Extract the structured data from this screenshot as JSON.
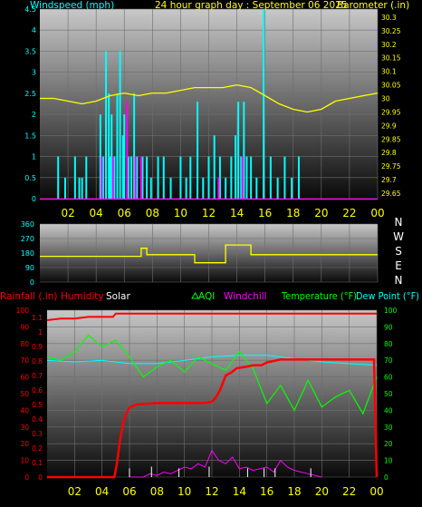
{
  "colors": {
    "background": "#000000",
    "plot_top": "#c8c8c8",
    "plot_bottom": "#0a0a0a",
    "windspeed": "#00ffff",
    "gust": "#ff00ff",
    "barometer": "#ffff00",
    "direction": "#ffff00",
    "rainfall": "#ff0000",
    "humidity": "#ff0000",
    "solar": "#ffffff",
    "aqi": "#00ff00",
    "windchill": "#ff00ff",
    "temperature": "#00ff00",
    "dewpoint": "#00ffff",
    "hour_axis": "#ffff00"
  },
  "chart_data": [
    {
      "type": "bar",
      "title": "24 hour graph day : September 06 2025",
      "left_axis_label": "Windspeed (mph)",
      "right_axis_label": "Barometer (.in)",
      "x_ticks": [
        "02",
        "04",
        "06",
        "08",
        "10",
        "12",
        "14",
        "16",
        "18",
        "20",
        "22",
        "00"
      ],
      "xlim": [
        0,
        24
      ],
      "ylim_left": [
        0,
        4.5
      ],
      "y_ticks_left": [
        "0",
        "0.5",
        "1",
        "1.5",
        "2",
        "2.5",
        "3",
        "3.5",
        "4",
        "4.5"
      ],
      "ylim_right": [
        29.63,
        30.33
      ],
      "y_ticks_right": [
        "29.65",
        "29.7",
        "29.75",
        "29.8",
        "29.85",
        "29.9",
        "29.95",
        "30",
        "30.05",
        "30.1",
        "30.15",
        "30.2",
        "30.25",
        "30.3"
      ],
      "series": [
        {
          "key": "windspeed",
          "axis": "left",
          "render": "bars",
          "x": [
            1.3,
            1.8,
            2.5,
            2.8,
            3.0,
            3.3,
            4.3,
            4.5,
            4.7,
            4.9,
            5.0,
            5.1,
            5.3,
            5.5,
            5.7,
            5.9,
            6.0,
            6.3,
            6.5,
            6.7,
            6.9,
            7.3,
            7.6,
            7.9,
            8.4,
            8.8,
            9.3,
            10.0,
            10.4,
            10.7,
            11.2,
            11.6,
            12.0,
            12.4,
            12.8,
            13.2,
            13.6,
            13.9,
            14.1,
            14.3,
            14.5,
            14.7,
            15.0,
            15.4,
            15.9,
            16.4,
            16.9,
            17.4,
            17.9,
            18.4
          ],
          "values": [
            1.0,
            0.5,
            1.0,
            0.5,
            0.5,
            1.0,
            2.0,
            1.0,
            3.5,
            2.5,
            1.0,
            2.0,
            1.0,
            2.5,
            3.5,
            1.5,
            2.0,
            1.0,
            1.0,
            2.5,
            1.0,
            1.0,
            1.0,
            0.5,
            1.0,
            1.0,
            0.5,
            1.0,
            0.5,
            1.0,
            2.3,
            0.5,
            1.0,
            1.5,
            1.0,
            0.5,
            1.0,
            1.5,
            2.3,
            1.0,
            2.3,
            1.0,
            1.0,
            0.5,
            4.5,
            1.0,
            0.5,
            1.0,
            0.5,
            1.0
          ]
        },
        {
          "key": "gust",
          "axis": "left",
          "render": "bars",
          "x": [
            4.4,
            5.2,
            6.2,
            6.8,
            7.2,
            12.7,
            14.4
          ],
          "values": [
            1.0,
            1.0,
            2.3,
            1.0,
            1.0,
            0.5,
            1.0
          ]
        },
        {
          "key": "barometer",
          "axis": "right",
          "render": "line",
          "x": [
            0,
            1,
            2,
            3,
            4,
            5,
            6,
            7,
            8,
            9,
            10,
            11,
            12,
            13,
            14,
            15,
            16,
            17,
            18,
            19,
            20,
            21,
            22,
            23,
            24
          ],
          "values": [
            30.0,
            30.0,
            29.99,
            29.98,
            29.99,
            30.01,
            30.02,
            30.01,
            30.02,
            30.02,
            30.03,
            30.04,
            30.04,
            30.04,
            30.05,
            30.04,
            30.01,
            29.98,
            29.96,
            29.95,
            29.96,
            29.99,
            30.0,
            30.01,
            30.02
          ]
        }
      ]
    },
    {
      "type": "line",
      "left_ticks": [
        "360",
        "270",
        "180",
        "90",
        "0"
      ],
      "right_labels": [
        "N",
        "W",
        "S",
        "E",
        "N"
      ],
      "ylim": [
        0,
        360
      ],
      "series": [
        {
          "key": "direction",
          "x": [
            0,
            7.2,
            7.2,
            7.6,
            7.6,
            11.0,
            11.0,
            13.2,
            13.2,
            15.0,
            15.0,
            24
          ],
          "values": [
            160,
            160,
            210,
            210,
            170,
            170,
            120,
            120,
            230,
            230,
            170,
            170
          ]
        }
      ]
    },
    {
      "type": "line",
      "legend": [
        "Rainfall (.in)",
        "Humidity",
        "Solar",
        "AQI",
        "Windchill",
        "Temperature (°F)",
        "Dew Point (°F)"
      ],
      "legend_icons": {
        "aqi": "triangle-icon"
      },
      "x_ticks": [
        "02",
        "04",
        "06",
        "08",
        "10",
        "12",
        "14",
        "16",
        "18",
        "20",
        "22",
        "00"
      ],
      "xlim": [
        0,
        24
      ],
      "left_ticks_humidity": [
        "100",
        "90",
        "80",
        "70",
        "60",
        "50",
        "40",
        "30",
        "20",
        "10",
        "0"
      ],
      "left_ticks_rain": [
        "1.1",
        "1",
        "0.9",
        "0.8",
        "0.7",
        "0.6",
        "0.5",
        "0.4",
        "0.3",
        "0.2",
        "0.1",
        "0"
      ],
      "right_ticks_temp": [
        "100",
        "90",
        "80",
        "70",
        "60",
        "50",
        "40",
        "30",
        "20",
        "10",
        "0"
      ],
      "ylim_humidity": [
        0,
        100
      ],
      "ylim_rain": [
        0,
        1.15
      ],
      "ylim_temp": [
        0,
        100
      ],
      "series": [
        {
          "key": "rainfall",
          "axis": "rain",
          "x": [
            0,
            4.9,
            5.1,
            5.3,
            5.6,
            6.0,
            6.5,
            8.0,
            10.0,
            11.5,
            12.0,
            12.3,
            12.6,
            13.0,
            13.4,
            13.8,
            14.5,
            15.0,
            15.6,
            16.0,
            16.5,
            17.0,
            18.0,
            20.0,
            22.0,
            23.8,
            24
          ],
          "values": [
            0,
            0,
            0.1,
            0.25,
            0.4,
            0.48,
            0.5,
            0.51,
            0.51,
            0.51,
            0.52,
            0.55,
            0.6,
            0.7,
            0.72,
            0.75,
            0.76,
            0.77,
            0.77,
            0.79,
            0.8,
            0.81,
            0.81,
            0.81,
            0.81,
            0.81,
            0
          ]
        },
        {
          "key": "humidity",
          "axis": "humidity",
          "x": [
            0,
            1,
            2,
            3,
            4,
            4.8,
            5.0,
            24
          ],
          "values": [
            94,
            95,
            95,
            96,
            96,
            96,
            98,
            98
          ]
        },
        {
          "key": "temperature",
          "axis": "temp",
          "x": [
            0,
            1,
            2,
            3,
            4,
            5,
            6,
            7,
            8,
            9,
            10,
            11,
            12,
            13,
            14,
            15,
            16,
            17,
            18,
            19,
            20,
            21,
            22,
            23,
            24
          ],
          "values": [
            72,
            70,
            75,
            85,
            78,
            82,
            72,
            60,
            66,
            70,
            63,
            72,
            68,
            64,
            75,
            65,
            44,
            55,
            40,
            58,
            42,
            48,
            52,
            38,
            60
          ]
        },
        {
          "key": "dewpoint",
          "axis": "temp",
          "x": [
            0,
            2,
            4,
            6,
            8,
            10,
            12,
            14,
            16,
            18,
            20,
            22,
            24
          ],
          "values": [
            70,
            69,
            70,
            68,
            68,
            70,
            72,
            73,
            73,
            71,
            69,
            68,
            67
          ]
        },
        {
          "key": "solar",
          "axis": "humidity",
          "render": "spikes",
          "x": [
            6.0,
            7.6,
            9.6,
            11.8,
            14.6,
            15.8,
            16.6,
            19.2
          ],
          "values": [
            2,
            3,
            2,
            3,
            2,
            2,
            2,
            2
          ]
        },
        {
          "key": "windchill",
          "axis": "temp",
          "x": [
            6,
            7,
            7.5,
            8,
            8.5,
            9,
            9.5,
            10,
            10.5,
            11,
            11.5,
            12,
            12.5,
            13,
            13.5,
            14,
            14.5,
            15,
            15.5,
            16,
            16.5,
            17,
            17.5,
            18,
            18.5,
            19,
            19.5,
            20
          ],
          "values": [
            0,
            0,
            2,
            1,
            3,
            2,
            4,
            6,
            5,
            8,
            6,
            16,
            10,
            8,
            12,
            5,
            6,
            4,
            5,
            6,
            3,
            10,
            6,
            4,
            3,
            2,
            1,
            0
          ]
        }
      ]
    }
  ]
}
